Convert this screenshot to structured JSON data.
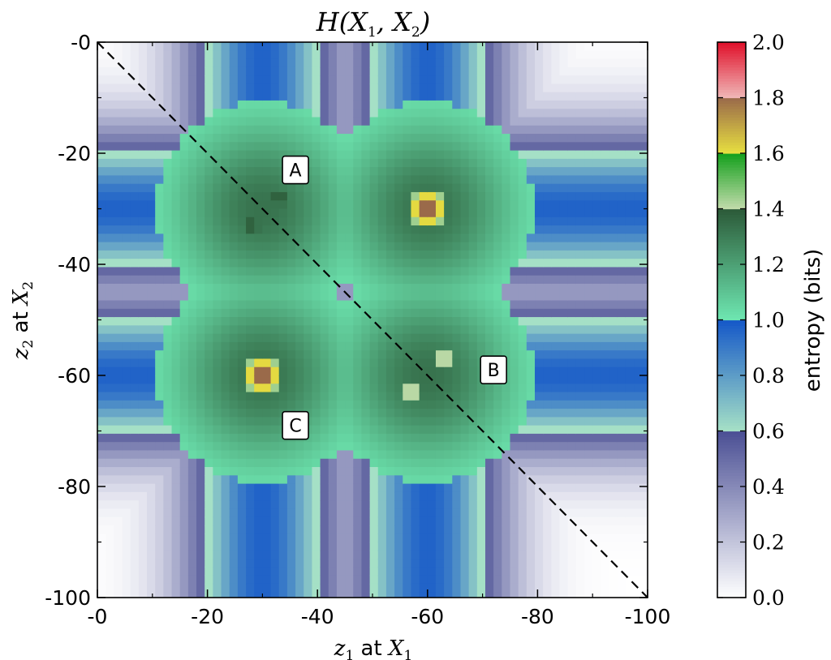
{
  "chart_data": {
    "type": "heatmap",
    "title": {
      "prefix": "H(X",
      "sub1": "1",
      "mid": ", X",
      "sub2": "2",
      "suffix": ")"
    },
    "xlabel": {
      "var": "z",
      "var_sub": "1",
      "text": " at ",
      "var2": "X",
      "var2_sub": "1"
    },
    "ylabel": {
      "var": "z",
      "var_sub": "2",
      "text": " at ",
      "var2": "X",
      "var2_sub": "2"
    },
    "xlim": [
      0,
      -100
    ],
    "ylim": [
      -100,
      0
    ],
    "x_ticks": [
      0,
      -20,
      -40,
      -60,
      -80,
      -100
    ],
    "x_tick_labels": [
      "-0",
      "-20",
      "-40",
      "-60",
      "-80",
      "-100"
    ],
    "y_ticks": [
      0,
      -20,
      -40,
      -60,
      -80,
      -100
    ],
    "y_tick_labels": [
      "-0",
      "-20",
      "-40",
      "-60",
      "-80",
      "-100"
    ],
    "colorbar": {
      "label": "entropy (bits)",
      "range": [
        0.0,
        2.0
      ],
      "ticks": [
        "0.0",
        "0.2",
        "0.4",
        "0.6",
        "0.8",
        "1.0",
        "1.2",
        "1.4",
        "1.6",
        "1.8",
        "2.0"
      ],
      "bands": [
        {
          "from": 0.0,
          "to": 0.6,
          "low": "#ffffff",
          "high": "#4a4f94"
        },
        {
          "from": 0.6,
          "to": 1.0,
          "low": "#a6e1c6",
          "high": "#1558c8"
        },
        {
          "from": 1.0,
          "to": 1.4,
          "low": "#6ee7b2",
          "high": "#2c5a38"
        },
        {
          "from": 1.4,
          "to": 1.6,
          "low": "#c2dbac",
          "high": "#14a01c"
        },
        {
          "from": 1.6,
          "to": 1.8,
          "low": "#e8e040",
          "high": "#9a6a4a"
        },
        {
          "from": 1.8,
          "to": 2.0,
          "low": "#f0b8b8",
          "high": "#e0102a"
        }
      ]
    },
    "grid": "pixelated heatmap, bin size 2",
    "lines_at": {
      "band_center_1": -30,
      "band_center_2": -60
    },
    "peaks": [
      {
        "x": -60,
        "y": -30,
        "value": 1.85
      },
      {
        "x": -30,
        "y": -60,
        "value": 1.85
      },
      {
        "x": -33,
        "y": -28,
        "value": 1.4
      },
      {
        "x": -28,
        "y": -33,
        "value": 1.4
      },
      {
        "x": -63,
        "y": -57,
        "value": 1.45
      },
      {
        "x": -57,
        "y": -63,
        "value": 1.45
      }
    ],
    "diagonal": {
      "from": [
        0,
        0
      ],
      "to": [
        -100,
        -100
      ],
      "style": "dashed"
    },
    "annotations": [
      {
        "text": "A",
        "x": -36,
        "y": -23
      },
      {
        "text": "B",
        "x": -72,
        "y": -59
      },
      {
        "text": "C",
        "x": -36,
        "y": -69
      }
    ]
  }
}
